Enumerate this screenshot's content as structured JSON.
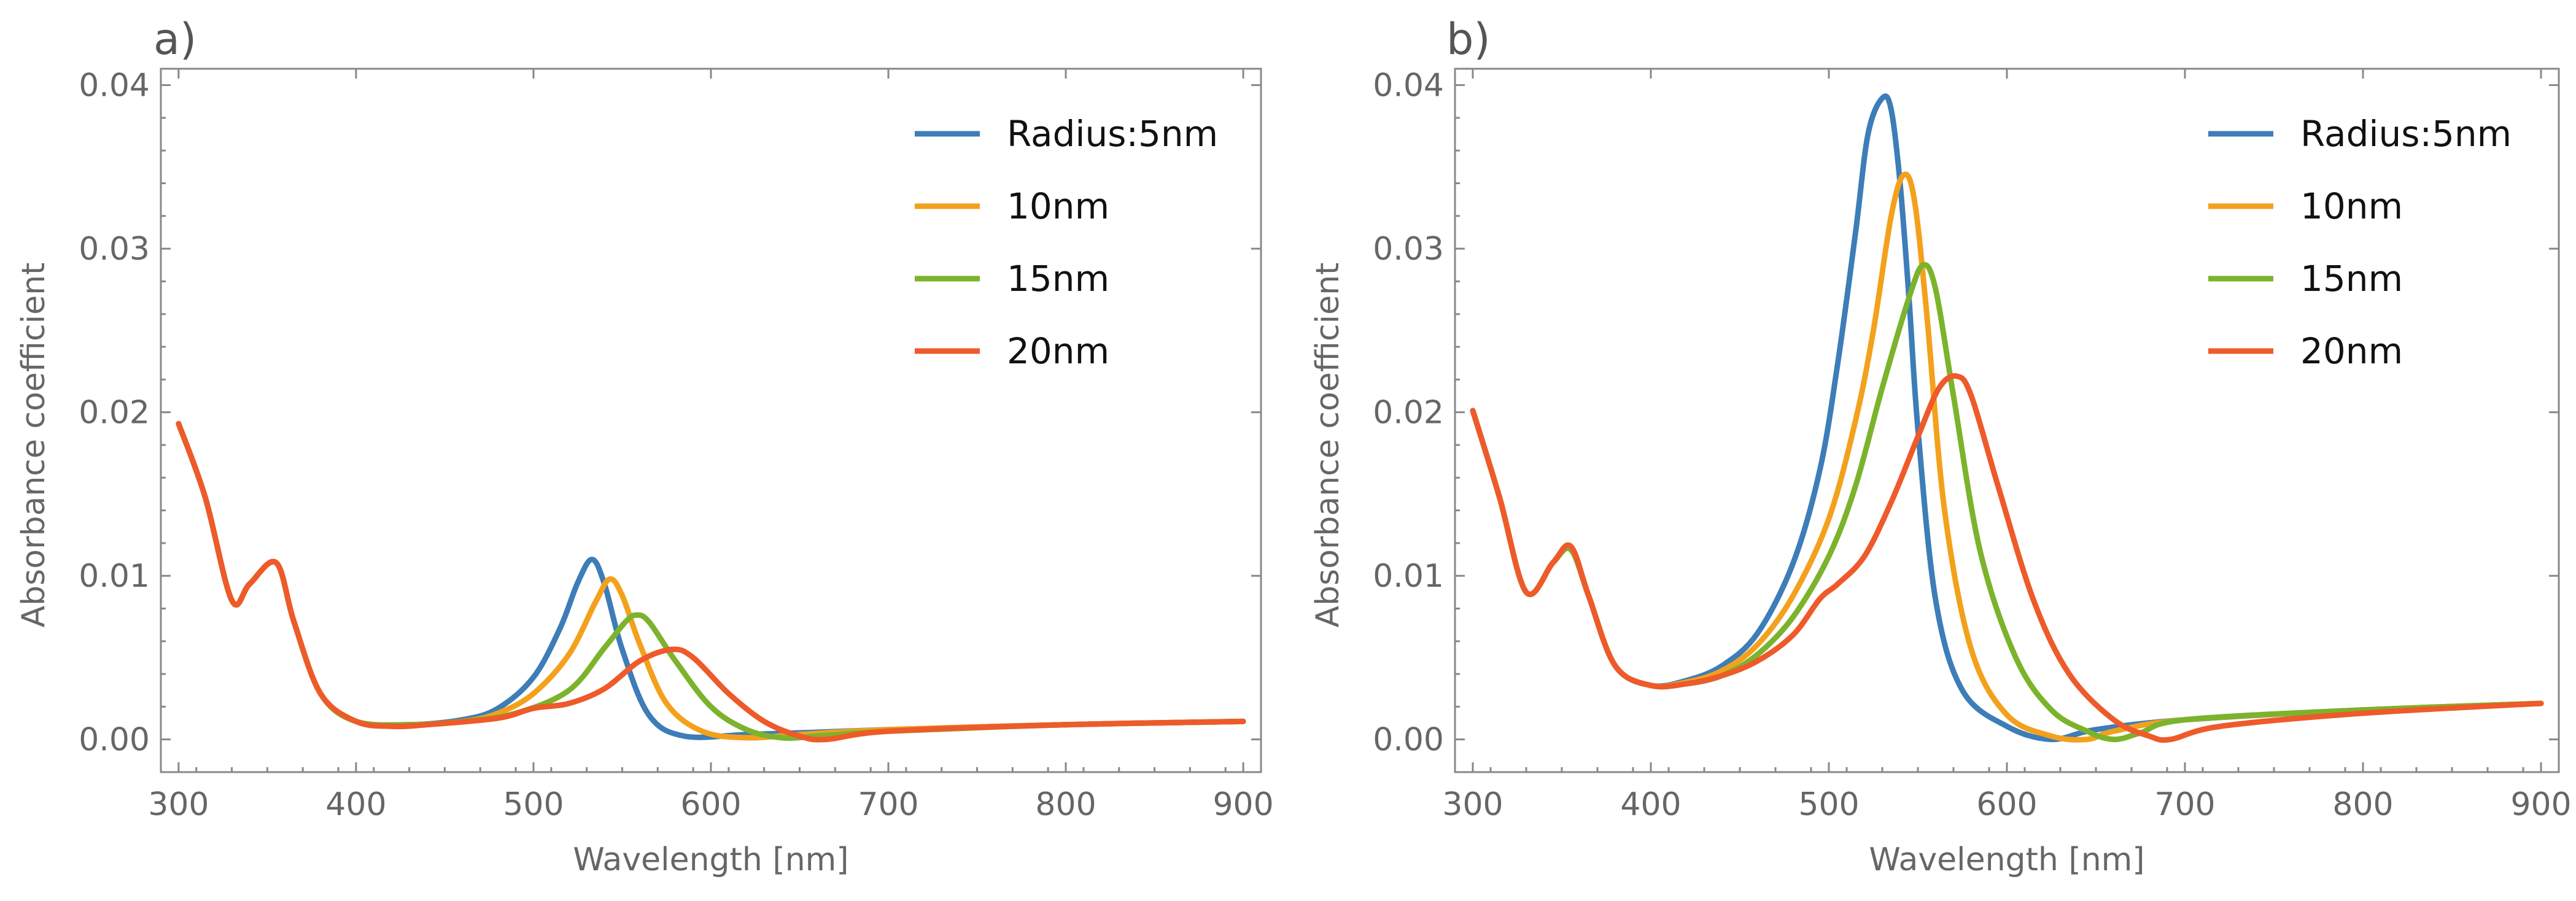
{
  "chart_data": [
    {
      "type": "line",
      "panel_label": "a)",
      "xlabel": "Wavelength [nm]",
      "ylabel": "Absorbance coefficient",
      "xlim": [
        290,
        910
      ],
      "ylim": [
        -0.002,
        0.041
      ],
      "xticks": [
        300,
        400,
        500,
        600,
        700,
        800,
        900
      ],
      "xtick_labels": [
        "300",
        "400",
        "500",
        "600",
        "700",
        "800",
        "900"
      ],
      "yticks": [
        0,
        0.01,
        0.02,
        0.03,
        0.04
      ],
      "ytick_labels": [
        "0.00",
        "0.01",
        "0.02",
        "0.03",
        "0.04"
      ],
      "legend_position": "top-right",
      "series": [
        {
          "name": "Radius:5nm",
          "color": "#3d7db8",
          "x": [
            300,
            315,
            330,
            340,
            355,
            365,
            380,
            400,
            430,
            460,
            480,
            500,
            515,
            525,
            533,
            540,
            550,
            565,
            585,
            620,
            650,
            700,
            800,
            900
          ],
          "y": [
            0.0193,
            0.0148,
            0.0085,
            0.0095,
            0.0108,
            0.0072,
            0.0028,
            0.0011,
            0.0009,
            0.0012,
            0.0019,
            0.0038,
            0.0068,
            0.0096,
            0.011,
            0.0095,
            0.0055,
            0.0015,
            0.0002,
            0.0003,
            0.0004,
            0.0006,
            0.0009,
            0.0011
          ]
        },
        {
          "name": "10nm",
          "color": "#f3a11c",
          "x": [
            300,
            315,
            330,
            340,
            355,
            365,
            380,
            400,
            430,
            460,
            480,
            500,
            520,
            535,
            543,
            550,
            560,
            575,
            595,
            620,
            650,
            700,
            800,
            900
          ],
          "y": [
            0.0193,
            0.0148,
            0.0085,
            0.0095,
            0.0108,
            0.0072,
            0.0028,
            0.0011,
            0.0009,
            0.0011,
            0.0016,
            0.0028,
            0.0052,
            0.0084,
            0.0098,
            0.0088,
            0.0058,
            0.0022,
            0.0005,
            0.0001,
            0.0003,
            0.0006,
            0.0009,
            0.0011
          ]
        },
        {
          "name": "15nm",
          "color": "#7cb32c",
          "x": [
            300,
            315,
            330,
            340,
            355,
            365,
            380,
            400,
            430,
            460,
            490,
            520,
            540,
            552,
            558,
            565,
            580,
            600,
            620,
            640,
            660,
            700,
            800,
            900
          ],
          "y": [
            0.0193,
            0.0148,
            0.0085,
            0.0095,
            0.0108,
            0.0072,
            0.0028,
            0.0011,
            0.0009,
            0.0011,
            0.0016,
            0.003,
            0.0056,
            0.0072,
            0.0076,
            0.0072,
            0.0048,
            0.002,
            0.0006,
            0.0001,
            0.0002,
            0.0005,
            0.0009,
            0.0011
          ]
        },
        {
          "name": "20nm",
          "color": "#ee5a2a",
          "x": [
            300,
            315,
            330,
            340,
            355,
            365,
            380,
            400,
            420,
            440,
            480,
            500,
            520,
            540,
            560,
            578,
            590,
            610,
            630,
            650,
            665,
            700,
            800,
            900
          ],
          "y": [
            0.0193,
            0.0148,
            0.0085,
            0.0095,
            0.0108,
            0.0072,
            0.0028,
            0.0011,
            0.0008,
            0.0009,
            0.0013,
            0.0019,
            0.0022,
            0.0031,
            0.0048,
            0.0055,
            0.005,
            0.0028,
            0.0011,
            0.0002,
            0.0,
            0.0005,
            0.0009,
            0.0011
          ]
        }
      ]
    },
    {
      "type": "line",
      "panel_label": "b)",
      "xlabel": "Wavelength [nm]",
      "ylabel": "Absorbance coefficient",
      "xlim": [
        290,
        910
      ],
      "ylim": [
        -0.002,
        0.041
      ],
      "xticks": [
        300,
        400,
        500,
        600,
        700,
        800,
        900
      ],
      "xtick_labels": [
        "300",
        "400",
        "500",
        "600",
        "700",
        "800",
        "900"
      ],
      "yticks": [
        0,
        0.01,
        0.02,
        0.03,
        0.04
      ],
      "ytick_labels": [
        "0.00",
        "0.01",
        "0.02",
        "0.03",
        "0.04"
      ],
      "legend_position": "top-right",
      "series": [
        {
          "name": "Radius:5nm",
          "color": "#3d7db8",
          "x": [
            300,
            315,
            330,
            345,
            355,
            365,
            380,
            400,
            420,
            440,
            460,
            480,
            495,
            505,
            515,
            522,
            530,
            535,
            540,
            545,
            550,
            560,
            575,
            600,
            625,
            650,
            700,
            800,
            900
          ],
          "y": [
            0.0201,
            0.0148,
            0.009,
            0.0108,
            0.0118,
            0.0088,
            0.0045,
            0.0033,
            0.0036,
            0.0045,
            0.0065,
            0.0108,
            0.0165,
            0.023,
            0.031,
            0.037,
            0.0392,
            0.0385,
            0.034,
            0.027,
            0.019,
            0.0085,
            0.003,
            0.0008,
            0.0,
            0.0006,
            0.0012,
            0.0018,
            0.0022
          ]
        },
        {
          "name": "10nm",
          "color": "#f3a11c",
          "x": [
            300,
            315,
            330,
            345,
            355,
            365,
            380,
            400,
            420,
            440,
            460,
            480,
            500,
            515,
            525,
            535,
            542,
            548,
            555,
            565,
            580,
            600,
            625,
            645,
            660,
            700,
            800,
            900
          ],
          "y": [
            0.0201,
            0.0148,
            0.009,
            0.0108,
            0.0118,
            0.0088,
            0.0045,
            0.0033,
            0.0035,
            0.0042,
            0.0058,
            0.0088,
            0.0135,
            0.0195,
            0.025,
            0.032,
            0.0345,
            0.033,
            0.026,
            0.014,
            0.0055,
            0.0015,
            0.0002,
            0.0,
            0.0005,
            0.0012,
            0.0018,
            0.0022
          ]
        },
        {
          "name": "15nm",
          "color": "#7cb32c",
          "x": [
            300,
            315,
            330,
            345,
            355,
            365,
            380,
            400,
            420,
            440,
            460,
            480,
            500,
            515,
            530,
            545,
            553,
            560,
            570,
            585,
            605,
            625,
            645,
            660,
            675,
            700,
            800,
            900
          ],
          "y": [
            0.0201,
            0.0148,
            0.009,
            0.0108,
            0.0116,
            0.0088,
            0.0045,
            0.0033,
            0.0034,
            0.0039,
            0.0052,
            0.0075,
            0.0112,
            0.0155,
            0.0215,
            0.027,
            0.029,
            0.0275,
            0.021,
            0.0115,
            0.005,
            0.0018,
            0.0005,
            0.0,
            0.0004,
            0.0012,
            0.0018,
            0.0022
          ]
        },
        {
          "name": "20nm",
          "color": "#ee5a2a",
          "x": [
            300,
            315,
            330,
            345,
            355,
            365,
            380,
            400,
            420,
            440,
            460,
            480,
            495,
            505,
            520,
            535,
            550,
            562,
            572,
            580,
            595,
            615,
            635,
            660,
            680,
            692,
            720,
            800,
            900
          ],
          "y": [
            0.0201,
            0.0148,
            0.009,
            0.0108,
            0.0118,
            0.0088,
            0.0045,
            0.0033,
            0.0034,
            0.0039,
            0.0048,
            0.0064,
            0.0086,
            0.0095,
            0.0112,
            0.0145,
            0.0185,
            0.0215,
            0.0222,
            0.021,
            0.0155,
            0.0085,
            0.004,
            0.0012,
            0.0002,
            0.0,
            0.0008,
            0.0016,
            0.0022
          ]
        }
      ]
    }
  ]
}
